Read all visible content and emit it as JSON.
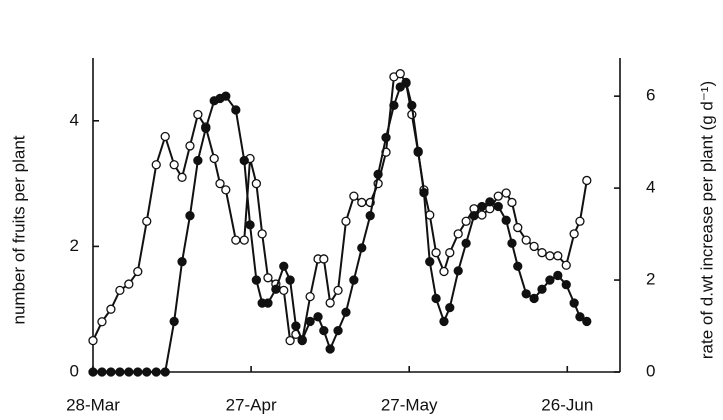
{
  "chart_data": {
    "type": "line",
    "y_label": "number of fruits per plant",
    "y2_label": "rate of d.wt increase per plant (g d⁻¹)",
    "x": [
      0,
      1.7,
      3.4,
      5.1,
      6.8,
      8.5,
      10.2,
      12.0,
      13.7,
      15.4,
      16.9,
      18.4,
      19.9,
      21.4,
      23.0,
      24.1,
      25.2,
      27.1,
      28.7,
      29.8,
      31.0,
      32.1,
      33.2,
      34.7,
      36.2,
      37.4,
      38.5,
      39.7,
      41.2,
      42.7,
      43.8,
      45.0,
      46.5,
      48.0,
      49.5,
      51.0,
      52.6,
      54.1,
      55.6,
      57.1,
      58.3,
      59.4,
      60.5,
      61.7,
      62.8,
      63.9,
      65.1,
      66.6,
      67.7,
      69.3,
      70.8,
      72.3,
      73.8,
      75.3,
      76.9,
      78.4,
      79.5,
      80.6,
      82.2,
      83.7,
      85.2,
      86.7,
      88.2,
      89.8,
      91.3,
      92.4,
      93.7
    ],
    "series": [
      {
        "color": "#ffffff",
        "values": [
          0.5,
          0.8,
          1.0,
          1.3,
          1.4,
          1.6,
          2.4,
          3.3,
          3.75,
          3.3,
          3.1,
          3.6,
          4.1,
          3.9,
          3.4,
          3.0,
          2.9,
          2.1,
          2.1,
          3.4,
          3.0,
          2.2,
          1.5,
          1.4,
          1.3,
          0.5,
          0.6,
          0.5,
          1.2,
          1.8,
          1.8,
          1.1,
          1.3,
          2.4,
          2.8,
          2.7,
          2.7,
          3.0,
          3.5,
          4.7,
          4.75,
          4.6,
          4.1,
          3.5,
          2.9,
          2.5,
          1.9,
          1.6,
          1.9,
          2.2,
          2.4,
          2.6,
          2.5,
          2.6,
          2.8,
          2.85,
          2.7,
          2.3,
          2.1,
          2.0,
          1.9,
          1.85,
          1.85,
          1.7,
          2.2,
          2.4,
          3.05
        ]
      },
      {
        "color": "#111111",
        "axis": "y2",
        "values": [
          0,
          0,
          0,
          0,
          0,
          0,
          0,
          0,
          0,
          1.1,
          2.4,
          3.4,
          4.6,
          5.3,
          5.9,
          5.95,
          6.0,
          5.7,
          4.6,
          3.2,
          2.0,
          1.5,
          1.5,
          1.8,
          2.3,
          2.0,
          1.0,
          0.7,
          1.1,
          1.2,
          0.9,
          0.5,
          0.9,
          1.3,
          2.0,
          2.7,
          3.4,
          4.3,
          5.1,
          5.8,
          6.2,
          6.3,
          5.8,
          4.8,
          3.9,
          2.4,
          1.6,
          1.1,
          1.4,
          2.2,
          2.8,
          3.4,
          3.6,
          3.7,
          3.6,
          3.3,
          2.8,
          2.3,
          1.7,
          1.6,
          1.8,
          2.0,
          2.1,
          1.9,
          1.5,
          1.2,
          1.1
        ]
      }
    ],
    "xlim": [
      0,
      100
    ],
    "xticks": [
      {
        "value": 0,
        "label": "28-Mar"
      },
      {
        "value": 30,
        "label": "27-Apr"
      },
      {
        "value": 60,
        "label": "27-May"
      },
      {
        "value": 90,
        "label": "26-Jun"
      }
    ],
    "ylim": [
      0,
      5
    ],
    "yticks": [
      0,
      2,
      4
    ],
    "y2lim": [
      0,
      6.83
    ],
    "y2ticks": [
      0,
      2,
      4,
      6
    ]
  }
}
